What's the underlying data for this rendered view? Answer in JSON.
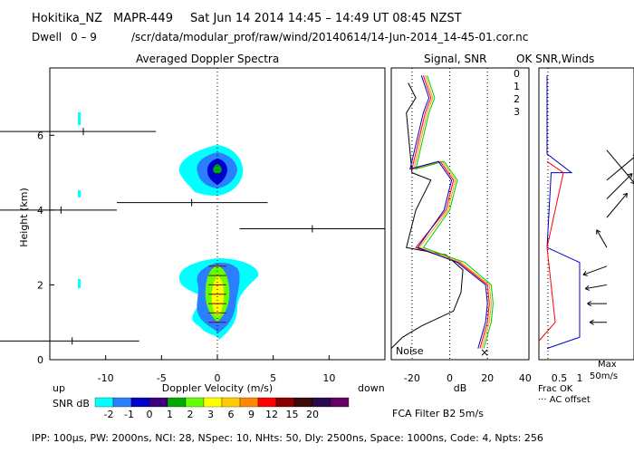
{
  "header": {
    "site": "Hokitika_NZ",
    "radar": "MAPR-449",
    "date_time": "Sat Jun 14 2014 14:45 – 14:49 UT 08:45 NZST",
    "dwell_label": "Dwell",
    "dwell_range": "0 – 9",
    "file_path": "/scr/data/modular_prof/raw/wind/20140614/14-Jun-2014_14-45-01.cor.nc"
  },
  "footer": {
    "params": "IPP: 100µs, PW: 2000ns, NCI: 28, NSpec: 10, NHts: 50, Dly: 2500ns, Space: 1000ns, Code: 4, Npts: 256",
    "fca_filter": "FCA Filter B2 5m/s"
  },
  "colors": {
    "snr_scale": [
      "#00ffff",
      "#2a7fff",
      "#0000cc",
      "#3f007f",
      "#00aa00",
      "#66ff00",
      "#ffff00",
      "#ffcc00",
      "#ff8800",
      "#ff0000",
      "#880000",
      "#3a0a0a",
      "#2a0a4a",
      "#660066"
    ],
    "channel": [
      "#ff0000",
      "#ff9900",
      "#00cc00",
      "#0000cc"
    ]
  },
  "chart_data": [
    {
      "type": "heatmap",
      "title": "Averaged Doppler Spectra",
      "xlabel": "Doppler Velocity (m/s)",
      "ylabel": "Height (km)",
      "xlim": [
        -15,
        15
      ],
      "ylim": [
        0,
        7.8
      ],
      "x_ticks": [
        -10,
        -5,
        0,
        5,
        10
      ],
      "y_ticks": [
        0,
        2,
        4,
        6
      ],
      "direction_labels": {
        "up": "up",
        "down": "down"
      },
      "colorbar": {
        "label": "SNR dB",
        "ticks": [
          "-2",
          "-1",
          "0",
          "1",
          "2",
          "3",
          "6",
          "9",
          "12",
          "15",
          "20"
        ]
      },
      "echo_regions": [
        {
          "name": "lower-echo",
          "height_range": [
            0.7,
            3.2
          ],
          "velocity_center": 0.0,
          "peak_snr_db": 6
        },
        {
          "name": "upper-echo",
          "height_range": [
            4.6,
            5.6
          ],
          "velocity_center": 0.0,
          "peak_snr_db": 1
        }
      ],
      "moment_markers": [
        {
          "height": 0.5,
          "velocity": -13,
          "left": -20,
          "right": -7
        },
        {
          "height": 3.5,
          "velocity": 8.5,
          "left": 2,
          "right": 15
        },
        {
          "height": 4.0,
          "velocity": -14,
          "left": -20,
          "right": -9
        },
        {
          "height": 4.2,
          "velocity": -2.3,
          "left": -9,
          "right": 4.5
        },
        {
          "height": 6.1,
          "velocity": -12,
          "left": -20,
          "right": -5.5
        }
      ]
    },
    {
      "type": "line",
      "title": "Signal, SNR",
      "xlabel": "dB",
      "xlim": [
        -31,
        42
      ],
      "ylim": [
        0,
        7.8
      ],
      "x_ticks": [
        -20,
        0,
        20,
        40
      ],
      "noise_label": "Noise",
      "legend": [
        "0",
        "1",
        "2",
        "3"
      ],
      "series": [
        {
          "name": "Signal",
          "color": "#000000",
          "points": [
            [
              -31,
              0.3
            ],
            [
              -25,
              0.6
            ],
            [
              -15,
              0.9
            ],
            [
              2,
              1.3
            ],
            [
              6,
              1.8
            ],
            [
              7,
              2.4
            ],
            [
              -2,
              2.8
            ],
            [
              -23,
              3.0
            ],
            [
              -18,
              4.0
            ],
            [
              -10,
              4.8
            ],
            [
              -20,
              5.0
            ],
            [
              -23,
              6.6
            ],
            [
              -18,
              7.0
            ],
            [
              -22,
              7.4
            ]
          ]
        },
        {
          "name": "SNR 0",
          "color": "#ff0000",
          "points": [
            [
              16,
              0.3
            ],
            [
              20,
              1.0
            ],
            [
              21,
              1.5
            ],
            [
              20,
              2.0
            ],
            [
              5,
              2.6
            ],
            [
              -18,
              3.0
            ],
            [
              -2,
              4.0
            ],
            [
              2,
              4.8
            ],
            [
              -5,
              5.3
            ],
            [
              -20,
              5.1
            ],
            [
              -13,
              6.6
            ],
            [
              -10,
              7.0
            ],
            [
              -14,
              7.6
            ]
          ]
        },
        {
          "name": "SNR 1",
          "color": "#ff9900",
          "points": [
            [
              17,
              0.3
            ],
            [
              21,
              1.0
            ],
            [
              22,
              1.5
            ],
            [
              21,
              2.0
            ],
            [
              6,
              2.6
            ],
            [
              -16,
              3.0
            ],
            [
              -1,
              4.0
            ],
            [
              3,
              4.8
            ],
            [
              -4,
              5.3
            ],
            [
              -19,
              5.1
            ],
            [
              -12,
              6.6
            ],
            [
              -9,
              7.0
            ],
            [
              -13,
              7.6
            ]
          ]
        },
        {
          "name": "SNR 2",
          "color": "#00cc00",
          "points": [
            [
              18,
              0.3
            ],
            [
              22,
              1.0
            ],
            [
              23,
              1.5
            ],
            [
              22,
              2.0
            ],
            [
              8,
              2.6
            ],
            [
              -14,
              3.0
            ],
            [
              0,
              4.0
            ],
            [
              4,
              4.8
            ],
            [
              -3,
              5.3
            ],
            [
              -18,
              5.1
            ],
            [
              -11,
              6.6
            ],
            [
              -8,
              7.0
            ],
            [
              -12,
              7.6
            ]
          ]
        },
        {
          "name": "SNR 3",
          "color": "#0000cc",
          "points": [
            [
              15,
              0.3
            ],
            [
              19,
              1.0
            ],
            [
              20,
              1.5
            ],
            [
              19,
              2.0
            ],
            [
              4,
              2.6
            ],
            [
              -17,
              3.0
            ],
            [
              -3,
              4.0
            ],
            [
              1,
              4.8
            ],
            [
              -6,
              5.3
            ],
            [
              -21,
              5.1
            ],
            [
              -14,
              6.6
            ],
            [
              -11,
              7.0
            ],
            [
              -15,
              7.6
            ]
          ]
        }
      ]
    },
    {
      "type": "line",
      "title": "OK SNR,Winds",
      "xlabel": "Frac OK",
      "x_ticks": [
        "0.5",
        "1"
      ],
      "ac_offset_label": "··· AC offset",
      "max_label": "Max",
      "max_value_label": "50m/s",
      "series": [
        {
          "name": "Frac OK",
          "color": "#0000cc",
          "points": [
            [
              0.2,
              0.3
            ],
            [
              1.0,
              0.6
            ],
            [
              1.0,
              2.6
            ],
            [
              0.2,
              3.0
            ],
            [
              0.3,
              5.0
            ],
            [
              0.8,
              5.0
            ],
            [
              0.2,
              5.5
            ],
            [
              0.2,
              6.4
            ],
            [
              0.2,
              7.6
            ]
          ]
        }
      ],
      "wind_barbs": [
        {
          "height": 1.0,
          "direction_deg": 270,
          "speed_ms": 12
        },
        {
          "height": 1.5,
          "direction_deg": 270,
          "speed_ms": 15
        },
        {
          "height": 2.0,
          "direction_deg": 260,
          "speed_ms": 18
        },
        {
          "height": 2.5,
          "direction_deg": 250,
          "speed_ms": 22
        },
        {
          "height": 3.0,
          "direction_deg": 330,
          "speed_ms": 16
        },
        {
          "height": 3.8,
          "direction_deg": 40,
          "speed_ms": 30
        },
        {
          "height": 4.3,
          "direction_deg": 45,
          "speed_ms": 35
        },
        {
          "height": 4.8,
          "direction_deg": 50,
          "speed_ms": 40
        },
        {
          "height": 5.6,
          "direction_deg": 140,
          "speed_ms": 45
        }
      ]
    }
  ]
}
